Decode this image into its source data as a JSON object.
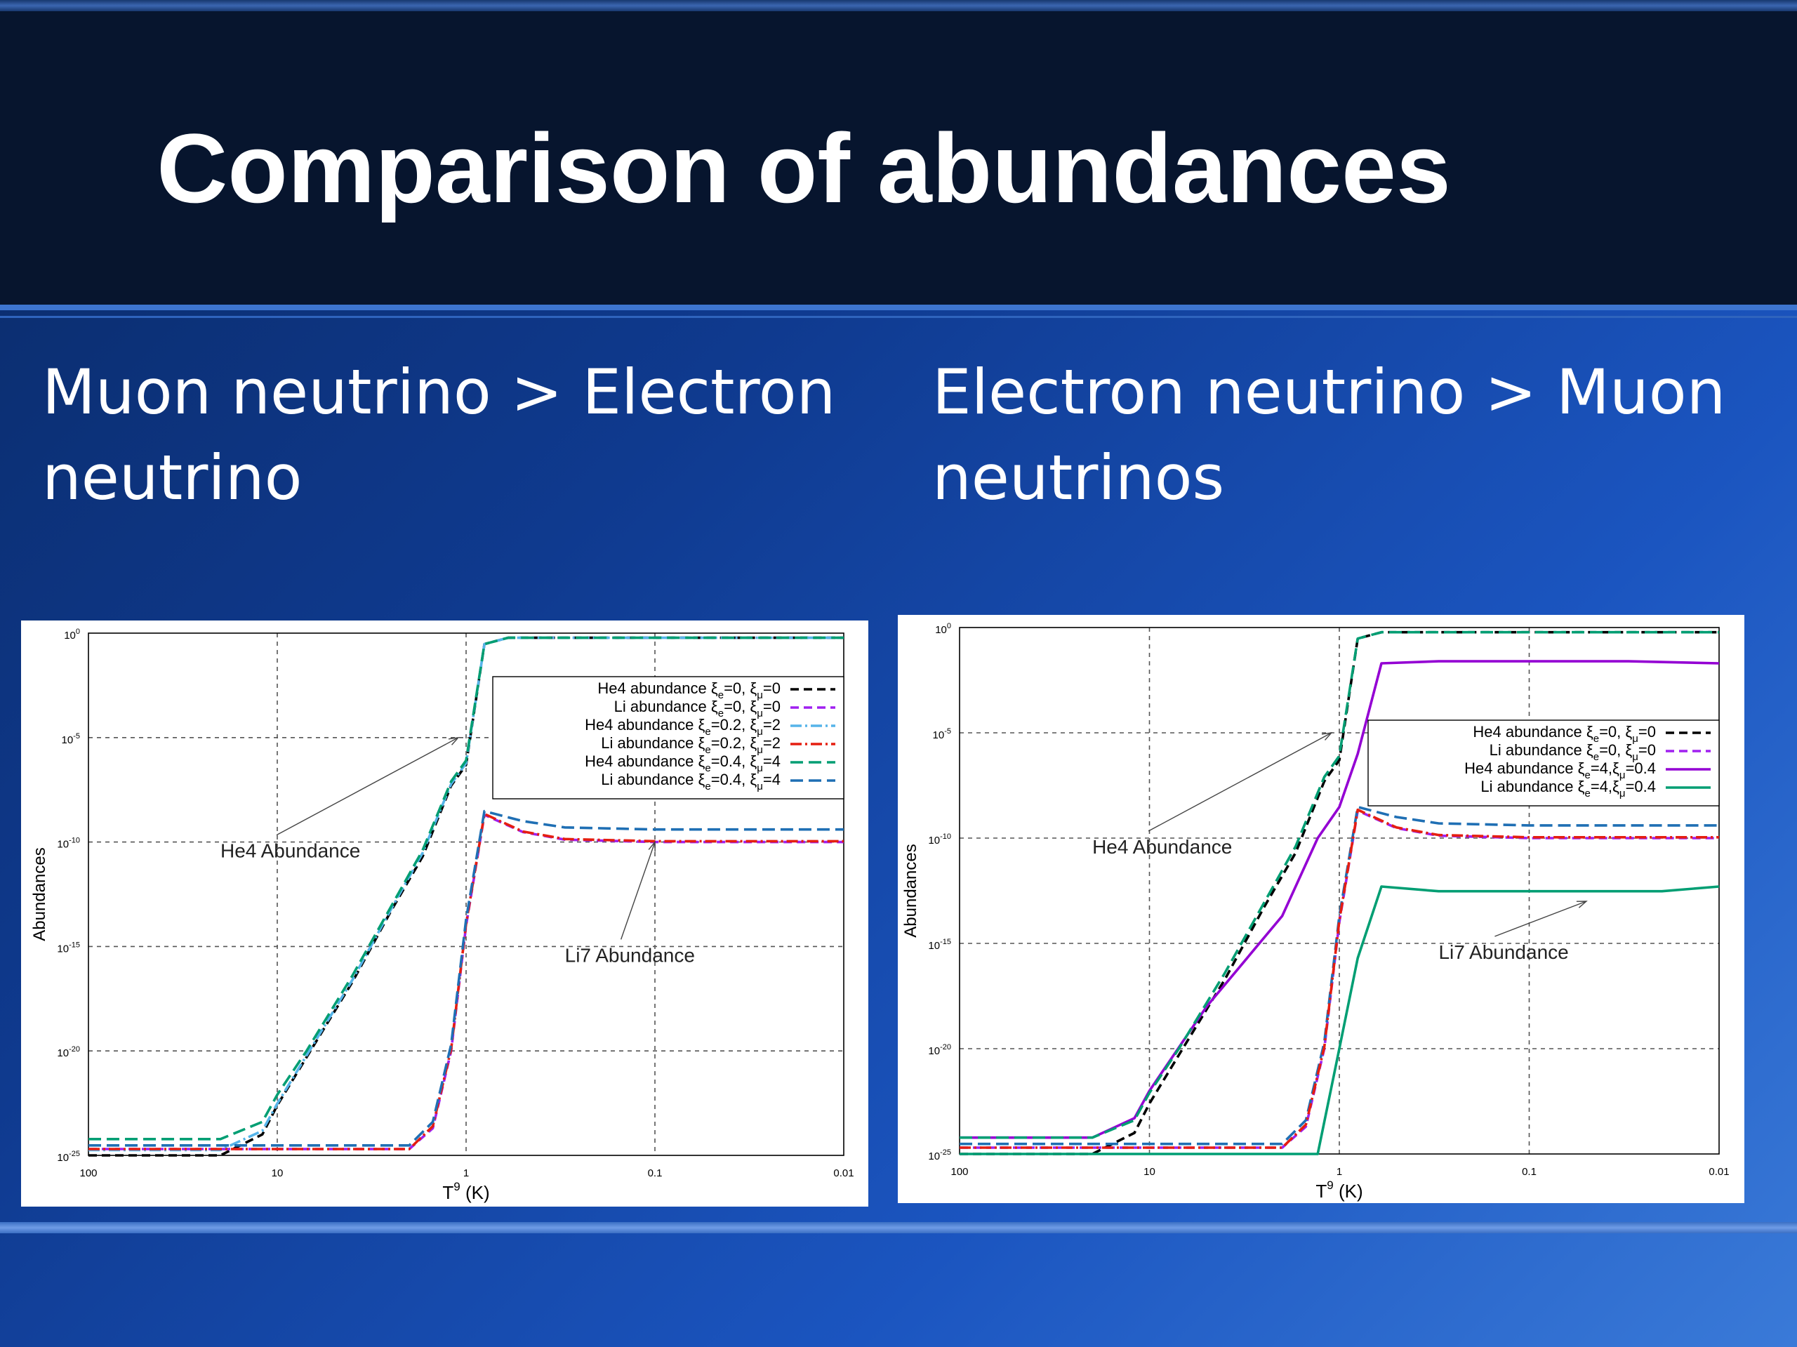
{
  "slide": {
    "title": "Comparison of abundances",
    "left_heading": "Muon neutrino > Electron\nneutrino",
    "right_heading": "Electron neutrino > Muon\nneutrinos"
  },
  "chart_data": [
    {
      "type": "line",
      "xlabel": "T",
      "xlabel_sup": "9",
      "xlabel_unit": " (K)",
      "ylabel": "Abundances",
      "x_scale": "log-reversed",
      "y_scale": "log",
      "xlim": [
        100,
        0.01
      ],
      "ylim": [
        1e-25,
        1
      ],
      "x_ticks": [
        "100",
        "10",
        "1",
        "0.1",
        "0.01"
      ],
      "y_ticks": [
        {
          "base": "10",
          "exp": "0"
        },
        {
          "base": "10",
          "exp": "-5"
        },
        {
          "base": "10",
          "exp": "-10"
        },
        {
          "base": "10",
          "exp": "-15"
        },
        {
          "base": "10",
          "exp": "-20"
        },
        {
          "base": "10",
          "exp": "-25"
        }
      ],
      "grid": true,
      "legend_position": "top-right",
      "annotations": [
        {
          "text": "He4 Abundance",
          "x": 20,
          "y": 1e-10,
          "arrow_to": [
            1.1,
            1e-05
          ]
        },
        {
          "text": "Li7 Abundance",
          "x": 0.3,
          "y": 1e-15,
          "arrow_to": [
            0.1,
            1e-10
          ]
        }
      ],
      "series": [
        {
          "name": "He4 abundance ξe=0, ξμ=0",
          "legend_main": "He4 abundance ",
          "xi_e": "0",
          "xi_mu": "0",
          "sep": ", ",
          "color": "#000000",
          "dash": "12,7",
          "x": [
            100,
            20,
            12,
            10,
            7,
            4,
            2.5,
            1.7,
            1.2,
            1.0,
            0.8,
            0.6,
            0.3,
            0.1,
            0.01
          ],
          "y": [
            1e-25,
            1e-25,
            1e-24,
            2.5e-23,
            5e-21,
            2e-17,
            5e-14,
            2e-11,
            5e-08,
            5e-07,
            0.3,
            0.6,
            0.6,
            0.6,
            0.6
          ]
        },
        {
          "name": "Li abundance ξe=0, ξμ=0",
          "legend_main": "Li abundance ",
          "xi_e": "0",
          "xi_mu": "0",
          "sep": ", ",
          "color": "#a020f0",
          "dash": "12,7",
          "x": [
            100,
            10,
            4,
            2,
            1.5,
            1.2,
            1.0,
            0.8,
            0.5,
            0.3,
            0.1,
            0.03,
            0.01
          ],
          "y": [
            2e-25,
            2e-25,
            2e-25,
            2e-25,
            2e-24,
            1e-20,
            1e-14,
            2e-09,
            3e-10,
            1.3e-10,
            1e-10,
            1e-10,
            1e-10
          ]
        },
        {
          "name": "He4 abundance ξe=0.2, ξμ=2",
          "legend_main": "He4 abundance ",
          "xi_e": "0.2",
          "xi_mu": "2",
          "sep": ", ",
          "color": "#56b4e9",
          "dash": "16,5,3,5",
          "x": [
            100,
            20,
            12,
            10,
            7,
            4,
            2.5,
            1.7,
            1.2,
            1.0,
            0.8,
            0.6,
            0.3,
            0.1,
            0.01
          ],
          "y": [
            1.8e-25,
            1.8e-25,
            1.5e-24,
            3e-23,
            6e-21,
            2.5e-17,
            6e-14,
            3e-11,
            6e-08,
            6e-07,
            0.3,
            0.6,
            0.6,
            0.6,
            0.6
          ]
        },
        {
          "name": "Li abundance ξe=0.2, ξμ=2",
          "legend_main": "Li abundance ",
          "xi_e": "0.2",
          "xi_mu": "2",
          "sep": ", ",
          "color": "#e51e10",
          "dash": "16,5,3,5",
          "x": [
            100,
            10,
            4,
            2,
            1.5,
            1.2,
            1.0,
            0.8,
            0.5,
            0.3,
            0.1,
            0.03,
            0.01
          ],
          "y": [
            2e-25,
            2e-25,
            2e-25,
            2e-25,
            2.5e-24,
            1.2e-20,
            1.2e-14,
            2.2e-09,
            3.2e-10,
            1.4e-10,
            1.1e-10,
            1.1e-10,
            1.1e-10
          ]
        },
        {
          "name": "He4 abundance ξe=0.4, ξμ=4",
          "legend_main": "He4 abundance ",
          "xi_e": "0.4",
          "xi_mu": "4",
          "sep": ", ",
          "color": "#009e73",
          "dash": "18,8",
          "x": [
            100,
            20,
            12,
            10,
            7,
            4,
            2.5,
            1.7,
            1.2,
            1.0,
            0.8,
            0.6,
            0.3,
            0.1,
            0.01
          ],
          "y": [
            6e-25,
            6e-25,
            4e-24,
            8e-23,
            1e-20,
            4e-17,
            8e-14,
            4e-11,
            8e-08,
            8e-07,
            0.3,
            0.6,
            0.6,
            0.6,
            0.6
          ]
        },
        {
          "name": "Li abundance ξe=0.4, ξμ=4",
          "legend_main": "Li abundance ",
          "xi_e": "0.4",
          "xi_mu": "4",
          "sep": ", ",
          "color": "#1f6fb4",
          "dash": "18,8",
          "x": [
            100,
            10,
            4,
            2,
            1.5,
            1.2,
            1.0,
            0.8,
            0.5,
            0.3,
            0.1,
            0.03,
            0.01
          ],
          "y": [
            3e-25,
            3e-25,
            3e-25,
            3e-25,
            4e-24,
            2e-20,
            2e-14,
            3e-09,
            1e-09,
            5e-10,
            4e-10,
            4e-10,
            4e-10
          ]
        }
      ]
    },
    {
      "type": "line",
      "xlabel": "T",
      "xlabel_sup": "9",
      "xlabel_unit": " (K)",
      "ylabel": "Abundances",
      "x_scale": "log-reversed",
      "y_scale": "log",
      "xlim": [
        100,
        0.01
      ],
      "ylim": [
        1e-25,
        1
      ],
      "x_ticks": [
        "100",
        "10",
        "1",
        "0.1",
        "0.01"
      ],
      "y_ticks": [
        {
          "base": "10",
          "exp": "0"
        },
        {
          "base": "10",
          "exp": "-5"
        },
        {
          "base": "10",
          "exp": "-10"
        },
        {
          "base": "10",
          "exp": "-15"
        },
        {
          "base": "10",
          "exp": "-20"
        },
        {
          "base": "10",
          "exp": "-25"
        }
      ],
      "grid": true,
      "legend_position": "top-right",
      "annotations": [
        {
          "text": "He4 Abundance",
          "x": 20,
          "y": 1e-10,
          "arrow_to": [
            1.1,
            1e-05
          ]
        },
        {
          "text": "Li7 Abundance",
          "x": 0.3,
          "y": 1e-15,
          "arrow_to": [
            0.05,
            1e-13
          ]
        }
      ],
      "series": [
        {
          "name": "He4 abundance ξe=0, ξμ=0",
          "legend_main": "He4 abundance ",
          "xi_e": "0",
          "xi_mu": "0",
          "sep": ", ",
          "color": "#000000",
          "dash": "12,7",
          "x": [
            100,
            20,
            12,
            10,
            7,
            4,
            2.5,
            1.7,
            1.2,
            1.0,
            0.8,
            0.6,
            0.3,
            0.1,
            0.01
          ],
          "y": [
            1e-25,
            1e-25,
            1e-24,
            2.5e-23,
            5e-21,
            2e-17,
            5e-14,
            2e-11,
            5e-08,
            5e-07,
            0.3,
            0.6,
            0.6,
            0.6,
            0.6
          ]
        },
        {
          "name": "Li abundance ξe=0, ξμ=0",
          "legend_main": "Li abundance ",
          "xi_e": "0",
          "xi_mu": "0",
          "sep": ", ",
          "color": "#a020f0",
          "dash": "12,7",
          "x": [
            100,
            10,
            4,
            2,
            1.5,
            1.2,
            1.0,
            0.8,
            0.5,
            0.3,
            0.1,
            0.03,
            0.01
          ],
          "y": [
            2e-25,
            2e-25,
            2e-25,
            2e-25,
            2e-24,
            1e-20,
            1e-14,
            2e-09,
            3e-10,
            1.3e-10,
            1e-10,
            1e-10,
            1e-10
          ]
        },
        {
          "name": "He4 abundance ξe=4,ξμ=0.4",
          "legend_main": "He4 abundance ",
          "xi_e": "4",
          "xi_mu": "0.4",
          "sep": ",",
          "color": "#9400d3",
          "dash": "",
          "x": [
            100,
            20,
            12,
            10,
            5,
            2,
            1.3,
            1.0,
            0.8,
            0.6,
            0.3,
            0.1,
            0.03,
            0.01
          ],
          "y": [
            6e-25,
            6e-25,
            5e-24,
            1e-22,
            1e-18,
            2e-14,
            1e-10,
            3e-09,
            1e-06,
            0.02,
            0.025,
            0.025,
            0.025,
            0.02
          ]
        },
        {
          "name": "Li abundance ξe=4,ξμ=0.4",
          "legend_main": "Li abundance ",
          "xi_e": "4",
          "xi_mu": "0.4",
          "sep": ",",
          "color": "#009e73",
          "dash": "",
          "x": [
            100,
            10,
            2,
            1.3,
            1.0,
            0.8,
            0.6,
            0.3,
            0.1,
            0.02,
            0.01
          ],
          "y": [
            1e-25,
            1e-25,
            1e-25,
            1e-25,
            1e-20,
            2e-16,
            5e-13,
            3e-13,
            3e-13,
            3e-13,
            5e-13
          ]
        },
        {
          "name": "He4 abundance ξe=0.4, ξμ=4",
          "legend_main": "",
          "xi_e": "",
          "xi_mu": "",
          "sep": "",
          "in_legend": false,
          "color": "#009e73",
          "dash": "18,8",
          "x": [
            100,
            20,
            12,
            10,
            7,
            4,
            2.5,
            1.7,
            1.2,
            1.0,
            0.8,
            0.6,
            0.3,
            0.1,
            0.01
          ],
          "y": [
            6e-25,
            6e-25,
            4e-24,
            8e-23,
            1e-20,
            4e-17,
            8e-14,
            4e-11,
            8e-08,
            8e-07,
            0.3,
            0.6,
            0.6,
            0.6,
            0.6
          ]
        },
        {
          "name": "Li abundance ξe=0.4, ξμ=4",
          "legend_main": "",
          "xi_e": "",
          "xi_mu": "",
          "sep": "",
          "in_legend": false,
          "color": "#1f6fb4",
          "dash": "18,8",
          "x": [
            100,
            10,
            4,
            2,
            1.5,
            1.2,
            1.0,
            0.8,
            0.5,
            0.3,
            0.1,
            0.03,
            0.01
          ],
          "y": [
            3e-25,
            3e-25,
            3e-25,
            3e-25,
            4e-24,
            2e-20,
            2e-14,
            3e-09,
            1e-09,
            5e-10,
            4e-10,
            4e-10,
            4e-10
          ]
        },
        {
          "name": "Li abundance ξe=0.2, ξμ=2",
          "legend_main": "",
          "xi_e": "",
          "xi_mu": "",
          "sep": "",
          "in_legend": false,
          "color": "#e51e10",
          "dash": "16,5,3,5",
          "x": [
            100,
            10,
            4,
            2,
            1.5,
            1.2,
            1.0,
            0.8,
            0.5,
            0.3,
            0.1,
            0.03,
            0.01
          ],
          "y": [
            2e-25,
            2e-25,
            2e-25,
            2e-25,
            2.5e-24,
            1.2e-20,
            1.2e-14,
            2.2e-09,
            3.2e-10,
            1.4e-10,
            1.1e-10,
            1.1e-10,
            1.1e-10
          ]
        }
      ]
    }
  ]
}
